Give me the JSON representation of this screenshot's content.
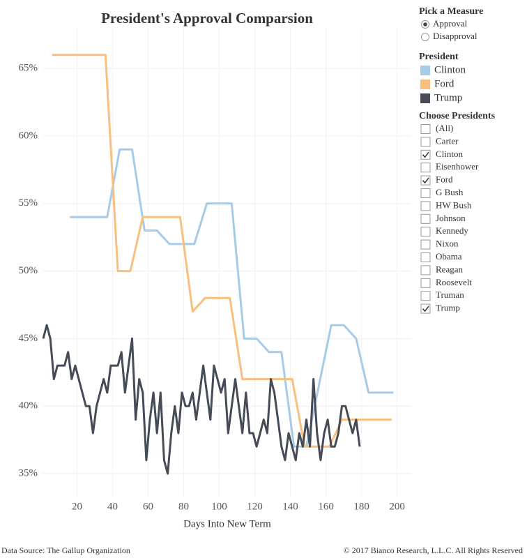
{
  "chart_data": {
    "type": "line",
    "title": "President's Approval Comparsion",
    "x_label": "Days Into New Term",
    "xlim": [
      1,
      208
    ],
    "ylim": [
      33.3,
      68
    ],
    "xticks": [
      20,
      40,
      60,
      80,
      100,
      120,
      140,
      160,
      180,
      200
    ],
    "yticks": [
      {
        "value": 35,
        "label": "35%"
      },
      {
        "value": 40,
        "label": "40%"
      },
      {
        "value": 45,
        "label": "45%"
      },
      {
        "value": 50,
        "label": "50%"
      },
      {
        "value": 55,
        "label": "55%"
      },
      {
        "value": 60,
        "label": "60%"
      },
      {
        "value": 65,
        "label": "65%"
      }
    ],
    "grid": true,
    "series": [
      {
        "name": "Clinton",
        "color": "#a6cbe6",
        "x": [
          16,
          37,
          44,
          51,
          58,
          65,
          72,
          86,
          93,
          107,
          114,
          121,
          128,
          135,
          142,
          149,
          163,
          170,
          177,
          184,
          198
        ],
        "values": [
          54,
          54,
          59,
          59,
          53,
          53,
          52,
          52,
          55,
          55,
          45,
          45,
          44,
          44,
          37,
          37,
          46,
          46,
          45,
          41,
          41
        ]
      },
      {
        "name": "Ford",
        "color": "#f8bf7e",
        "x": [
          6,
          36,
          43,
          50,
          57,
          64,
          78,
          85,
          92,
          106,
          113,
          141,
          148,
          162,
          169,
          197
        ],
        "values": [
          66,
          66,
          50,
          50,
          54,
          54,
          54,
          47,
          48,
          48,
          42,
          42,
          37,
          37,
          39,
          39
        ]
      },
      {
        "name": "Trump",
        "color": "#454b57",
        "x": [
          1,
          3,
          5,
          7,
          9,
          11,
          13,
          15,
          17,
          19,
          21,
          23,
          25,
          27,
          29,
          31,
          33,
          35,
          37,
          39,
          41,
          43,
          45,
          47,
          49,
          51,
          53,
          55,
          57,
          59,
          61,
          63,
          65,
          67,
          69,
          71,
          73,
          75,
          77,
          79,
          81,
          83,
          85,
          87,
          89,
          91,
          93,
          95,
          97,
          99,
          101,
          103,
          105,
          107,
          109,
          111,
          113,
          115,
          117,
          119,
          121,
          123,
          125,
          127,
          129,
          131,
          133,
          135,
          137,
          139,
          141,
          143,
          145,
          147,
          149,
          151,
          153,
          155,
          157,
          159,
          161,
          163,
          165,
          167,
          169,
          171,
          173,
          175,
          177,
          179
        ],
        "values": [
          45,
          46,
          45,
          42,
          43,
          43,
          43,
          44,
          42,
          43,
          42,
          41,
          40,
          40,
          38,
          40,
          41,
          42,
          41,
          43,
          43,
          43,
          44,
          41,
          43,
          45,
          39,
          42,
          41,
          36,
          39,
          41,
          38,
          41,
          36,
          35,
          38,
          40,
          38,
          41,
          40,
          40,
          41,
          39,
          41,
          43,
          41,
          39,
          43,
          42,
          41,
          42,
          38,
          40,
          42,
          40,
          38,
          41,
          38,
          38,
          37,
          38,
          39,
          38,
          42,
          41,
          39,
          37,
          36,
          38,
          37,
          36,
          38,
          37,
          39,
          37,
          42,
          38,
          36,
          38,
          39,
          37,
          37,
          38,
          40,
          40,
          39,
          38,
          39,
          37
        ]
      }
    ]
  },
  "controls": {
    "measure_title": "Pick a Measure",
    "measures": [
      {
        "label": "Approval",
        "selected": true
      },
      {
        "label": "Disapproval",
        "selected": false
      }
    ],
    "legend_title": "President",
    "choose_title": "Choose Presidents",
    "presidents": [
      {
        "label": "(All)",
        "checked": false
      },
      {
        "label": "Carter",
        "checked": false
      },
      {
        "label": "Clinton",
        "checked": true
      },
      {
        "label": "Eisenhower",
        "checked": false
      },
      {
        "label": "Ford",
        "checked": true
      },
      {
        "label": "G Bush",
        "checked": false
      },
      {
        "label": "HW Bush",
        "checked": false
      },
      {
        "label": "Johnson",
        "checked": false
      },
      {
        "label": "Kennedy",
        "checked": false
      },
      {
        "label": "Nixon",
        "checked": false
      },
      {
        "label": "Obama",
        "checked": false
      },
      {
        "label": "Reagan",
        "checked": false
      },
      {
        "label": "Roosevelt",
        "checked": false
      },
      {
        "label": "Truman",
        "checked": false
      },
      {
        "label": "Trump",
        "checked": true
      }
    ]
  },
  "footer": {
    "source": "Data Source: The Gallup Organization",
    "copyright": "© 2017 Bianco Research, L.L.C. All Rights Reserved"
  }
}
